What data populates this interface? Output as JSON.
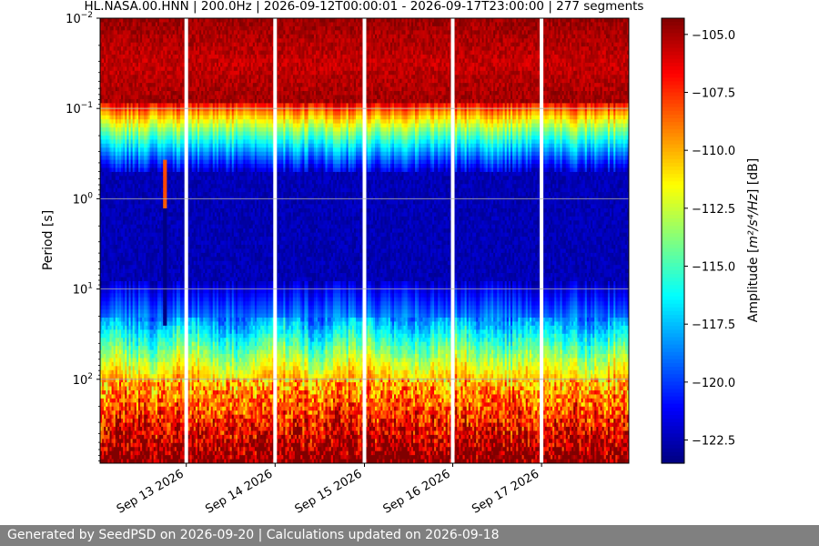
{
  "chart_data": {
    "type": "heatmap",
    "title": "HL.NASA.00.HNN | 200.0Hz | 2026-09-12T00:00:01 - 2026-09-17T23:00:00 | 277 segments",
    "xlabel": "",
    "ylabel": "Period [s]",
    "colorbar_label_prefix": "Amplitude [",
    "colorbar_label_unit": "m²/s⁴/Hz",
    "colorbar_label_suffix": "] [dB]",
    "x_tick_labels": [
      "Sep 13 2026",
      "Sep 14 2026",
      "Sep 15 2026",
      "Sep 16 2026",
      "Sep 17 2026"
    ],
    "y_tick_labels": [
      {
        "base": "10",
        "exp": "−2",
        "value": 0.01
      },
      {
        "base": "10",
        "exp": "−1",
        "value": 0.1
      },
      {
        "base": "10",
        "exp": "0",
        "value": 1
      },
      {
        "base": "10",
        "exp": "1",
        "value": 10
      },
      {
        "base": "10",
        "exp": "2",
        "value": 100
      }
    ],
    "y_scale": "log",
    "y_inverted": true,
    "ylim": [
      0.01,
      850
    ],
    "colorbar_ticks": [
      "−105.0",
      "−107.5",
      "−110.0",
      "−112.5",
      "−115.0",
      "−117.5",
      "−120.0",
      "−122.5"
    ],
    "colorbar_tick_values": [
      -105.0,
      -107.5,
      -110.0,
      -112.5,
      -115.0,
      -117.5,
      -120.0,
      -122.5
    ],
    "zlim": [
      -123.5,
      -104.3
    ],
    "colormap": "jet",
    "grid": true,
    "num_columns": 277,
    "gap_fractions": [
      0.163,
      0.331,
      0.5,
      0.667,
      0.835
    ],
    "transient_fraction": 0.122,
    "colors": {
      "gap": "#ffffff",
      "grid": "#b0b0b0"
    }
  },
  "footer": {
    "text": "Generated by SeedPSD on 2026-09-20 | Calculations updated on 2026-09-18"
  }
}
